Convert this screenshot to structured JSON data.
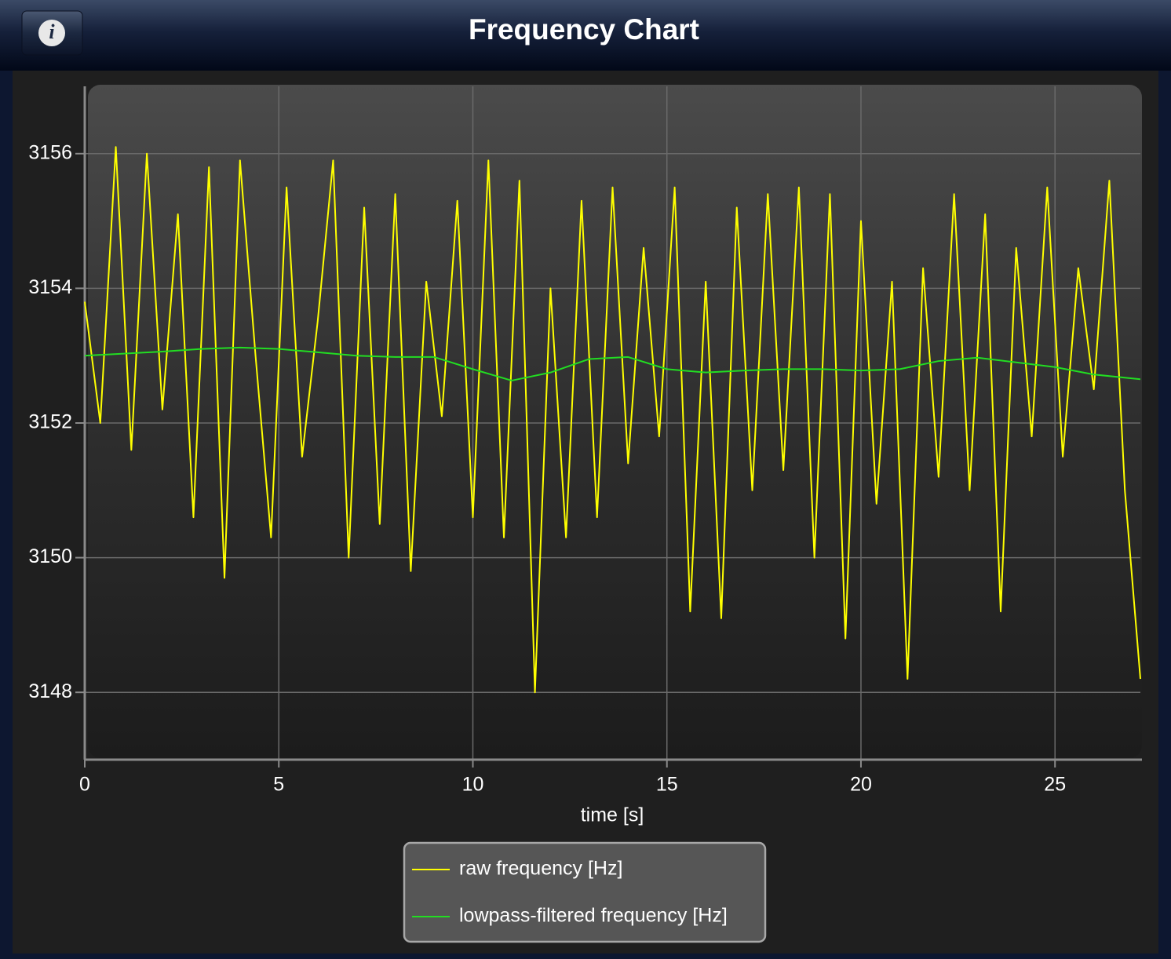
{
  "info_button": "i",
  "chart_data": {
    "type": "line",
    "title": "Frequency Chart",
    "x_label": "time [s]",
    "xlim": [
      0,
      27.2
    ],
    "xticks": [
      0,
      5,
      10,
      15,
      20,
      25
    ],
    "ylim": [
      3147,
      3157
    ],
    "yticks": [
      3148,
      3150,
      3152,
      3154,
      3156
    ],
    "grid": true,
    "legend": "bottom",
    "series": [
      {
        "name": "raw frequency [Hz]",
        "color": "#ffff00",
        "x": [
          0,
          0.4,
          0.8,
          1.2,
          1.6,
          2.0,
          2.4,
          2.8,
          3.2,
          3.6,
          4.0,
          4.4,
          4.8,
          5.2,
          5.6,
          6.0,
          6.4,
          6.8,
          7.2,
          7.6,
          8.0,
          8.4,
          8.8,
          9.2,
          9.6,
          10.0,
          10.4,
          10.8,
          11.2,
          11.6,
          12.0,
          12.4,
          12.8,
          13.2,
          13.6,
          14.0,
          14.4,
          14.8,
          15.2,
          15.6,
          16.0,
          16.4,
          16.8,
          17.2,
          17.6,
          18.0,
          18.4,
          18.8,
          19.2,
          19.6,
          20.0,
          20.4,
          20.8,
          21.2,
          21.6,
          22.0,
          22.4,
          22.8,
          23.2,
          23.6,
          24.0,
          24.4,
          24.8,
          25.2,
          25.6,
          26.0,
          26.4,
          26.8,
          27.2
        ],
        "values": [
          3153.8,
          3152.0,
          3156.1,
          3151.6,
          3156.0,
          3152.2,
          3155.1,
          3150.6,
          3155.8,
          3149.7,
          3155.9,
          3153.0,
          3150.3,
          3155.5,
          3151.5,
          3153.5,
          3155.9,
          3150.0,
          3155.2,
          3150.5,
          3155.4,
          3149.8,
          3154.1,
          3152.1,
          3155.3,
          3150.6,
          3155.9,
          3150.3,
          3155.6,
          3148.0,
          3154.0,
          3150.3,
          3155.3,
          3150.6,
          3155.5,
          3151.4,
          3154.6,
          3151.8,
          3155.5,
          3149.2,
          3154.1,
          3149.1,
          3155.2,
          3151.0,
          3155.4,
          3151.3,
          3155.5,
          3150.0,
          3155.4,
          3148.8,
          3155.0,
          3150.8,
          3154.1,
          3148.2,
          3154.3,
          3151.2,
          3155.4,
          3151.0,
          3155.1,
          3149.2,
          3154.6,
          3151.8,
          3155.5,
          3151.5,
          3154.3,
          3152.5,
          3155.6,
          3151.0,
          3148.2
        ]
      },
      {
        "name": "lowpass-filtered frequency [Hz]",
        "color": "#22dd22",
        "x": [
          0,
          1,
          2,
          3,
          4,
          5,
          6,
          7,
          8,
          9,
          10,
          11,
          12,
          13,
          14,
          15,
          16,
          17,
          18,
          19,
          20,
          21,
          22,
          23,
          24,
          25,
          26,
          27.2
        ],
        "values": [
          3153.0,
          3153.03,
          3153.06,
          3153.1,
          3153.12,
          3153.1,
          3153.05,
          3153.0,
          3152.98,
          3152.98,
          3152.8,
          3152.63,
          3152.75,
          3152.95,
          3152.98,
          3152.8,
          3152.75,
          3152.78,
          3152.8,
          3152.8,
          3152.78,
          3152.8,
          3152.92,
          3152.97,
          3152.9,
          3152.83,
          3152.72,
          3152.65
        ]
      }
    ]
  }
}
